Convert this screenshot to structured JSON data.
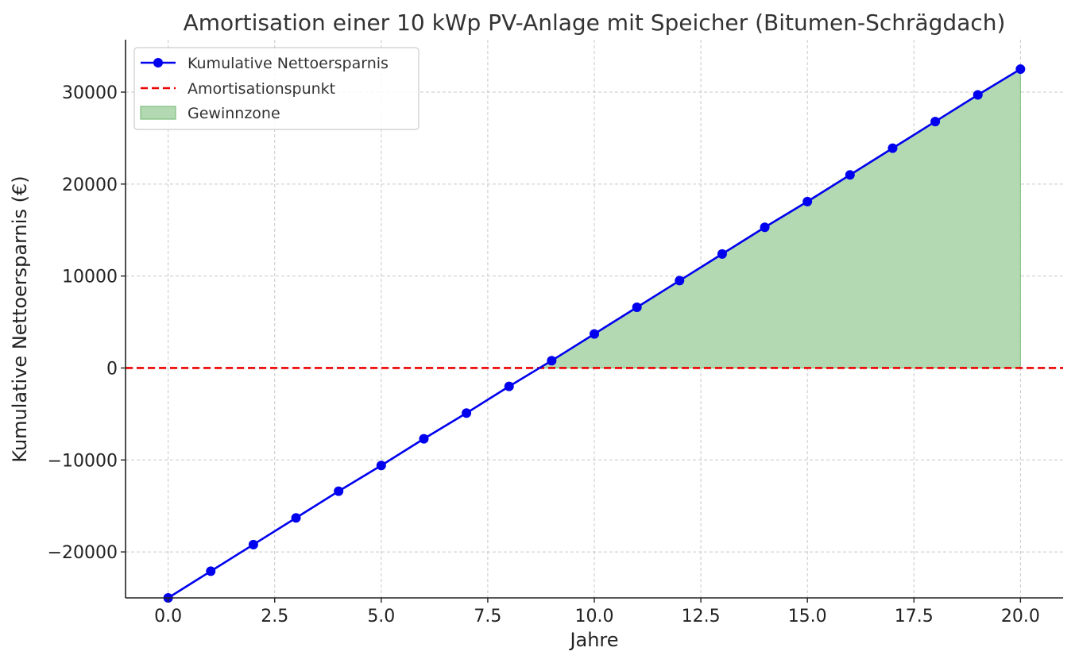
{
  "chart_data": {
    "type": "line",
    "title": "Amortisation einer 10 kWp PV-Anlage mit Speicher (Bitumen-Schrägdach)",
    "xlabel": "Jahre",
    "ylabel": "Kumulative Nettoersparnis (€)",
    "xlim": [
      -1,
      21
    ],
    "ylim": [
      -25000,
      35700
    ],
    "xticks": [
      0.0,
      2.5,
      5.0,
      7.5,
      10.0,
      12.5,
      15.0,
      17.5,
      20.0
    ],
    "xtick_labels": [
      "0.0",
      "2.5",
      "5.0",
      "7.5",
      "10.0",
      "12.5",
      "15.0",
      "17.5",
      "20.0"
    ],
    "yticks": [
      -20000,
      -10000,
      0,
      10000,
      20000,
      30000
    ],
    "ytick_labels": [
      "−20000",
      "−10000",
      "0",
      "10000",
      "20000",
      "30000"
    ],
    "grid": true,
    "legend_position": "top-left",
    "series": [
      {
        "name": "Kumulative Nettoersparnis",
        "color": "#0000ee",
        "marker": "circle",
        "x": [
          0,
          1,
          2,
          3,
          4,
          5,
          6,
          7,
          8,
          9,
          10,
          11,
          12,
          13,
          14,
          15,
          16,
          17,
          18,
          19,
          20
        ],
        "y": [
          -25000,
          -22100,
          -19200,
          -16300,
          -13400,
          -10600,
          -7700,
          -4900,
          -2000,
          800,
          3700,
          6600,
          9500,
          12400,
          15300,
          18100,
          21000,
          23900,
          26800,
          29700,
          32500
        ]
      }
    ],
    "reference_line": {
      "name": "Amortisationspunkt",
      "y": 0,
      "color": "#ee0000",
      "style": "dashed"
    },
    "fill_region": {
      "name": "Gewinnzone",
      "color": "#b2d9b2",
      "edge_color": "#7fbf7f",
      "condition": "y >= 0"
    }
  }
}
